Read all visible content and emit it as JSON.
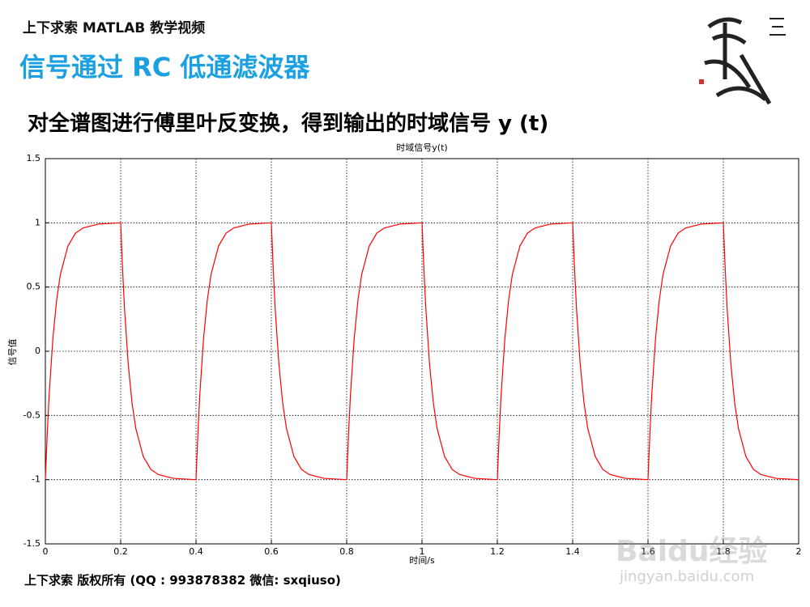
{
  "header": {
    "series_label": "上下求索 MATLAB 教学视频",
    "title": "信号通过 RC 低通滤波器",
    "subtitle": "对全谱图进行傅里叶反变换，得到输出的时域信号 y (t)"
  },
  "chart_data": {
    "type": "line",
    "title": "时域信号y(t)",
    "x_label": "时间/s",
    "y_label": "信号值",
    "x": [
      0,
      0.005,
      0.01,
      0.02,
      0.03,
      0.04,
      0.06,
      0.08,
      0.1,
      0.14,
      0.2,
      0.205,
      0.21,
      0.22,
      0.23,
      0.24,
      0.26,
      0.28,
      0.3,
      0.34,
      0.4,
      0.405,
      0.41,
      0.42,
      0.43,
      0.44,
      0.46,
      0.48,
      0.5,
      0.54,
      0.6,
      0.605,
      0.61,
      0.62,
      0.63,
      0.64,
      0.66,
      0.68,
      0.7,
      0.74,
      0.8,
      0.805,
      0.81,
      0.82,
      0.83,
      0.84,
      0.86,
      0.88,
      0.9,
      0.94,
      1,
      1.005,
      1.01,
      1.02,
      1.03,
      1.04,
      1.06,
      1.08,
      1.1,
      1.14,
      1.2,
      1.205,
      1.21,
      1.22,
      1.23,
      1.24,
      1.26,
      1.28,
      1.3,
      1.34,
      1.4,
      1.405,
      1.41,
      1.42,
      1.43,
      1.44,
      1.46,
      1.48,
      1.5,
      1.54,
      1.6,
      1.605,
      1.61,
      1.62,
      1.63,
      1.64,
      1.66,
      1.68,
      1.7,
      1.74,
      1.8,
      1.805,
      1.81,
      1.82,
      1.83,
      1.84,
      1.86,
      1.88,
      1.9,
      1.94,
      2
    ],
    "series": [
      {
        "color": "#ff0000",
        "values": [
          -1,
          -0.64,
          -0.34,
          0.1,
          0.4,
          0.6,
          0.82,
          0.92,
          0.96,
          0.99,
          1,
          0.64,
          0.34,
          -0.1,
          -0.4,
          -0.6,
          -0.82,
          -0.92,
          -0.96,
          -0.99,
          -1,
          -0.64,
          -0.34,
          0.1,
          0.4,
          0.6,
          0.82,
          0.92,
          0.96,
          0.99,
          1,
          0.64,
          0.34,
          -0.1,
          -0.4,
          -0.6,
          -0.82,
          -0.92,
          -0.96,
          -0.99,
          -1,
          -0.64,
          -0.34,
          0.1,
          0.4,
          0.6,
          0.82,
          0.92,
          0.96,
          0.99,
          1,
          0.64,
          0.34,
          -0.1,
          -0.4,
          -0.6,
          -0.82,
          -0.92,
          -0.96,
          -0.99,
          -1,
          -0.64,
          -0.34,
          0.1,
          0.4,
          0.6,
          0.82,
          0.92,
          0.96,
          0.99,
          1,
          0.64,
          0.34,
          -0.1,
          -0.4,
          -0.6,
          -0.82,
          -0.92,
          -0.96,
          -0.99,
          -1,
          -0.64,
          -0.34,
          0.1,
          0.4,
          0.6,
          0.82,
          0.92,
          0.96,
          0.99,
          1,
          0.64,
          0.34,
          -0.1,
          -0.4,
          -0.6,
          -0.82,
          -0.92,
          -0.96,
          -0.99,
          -1
        ]
      }
    ],
    "xlim": [
      0,
      2
    ],
    "xticks": [
      0,
      0.2,
      0.4,
      0.6,
      0.8,
      1,
      1.2,
      1.4,
      1.6,
      1.8,
      2
    ],
    "ylim": [
      -1.5,
      1.5
    ],
    "yticks": [
      -1.5,
      -1,
      -0.5,
      0,
      0.5,
      1,
      1.5
    ],
    "grid": true
  },
  "footer": {
    "copyright": "上下求索 版权所有 (QQ : 993878382   微信: sxqiuso)"
  },
  "watermark": {
    "brand": "Baidu经验",
    "url": "jingyan.baidu.com"
  }
}
